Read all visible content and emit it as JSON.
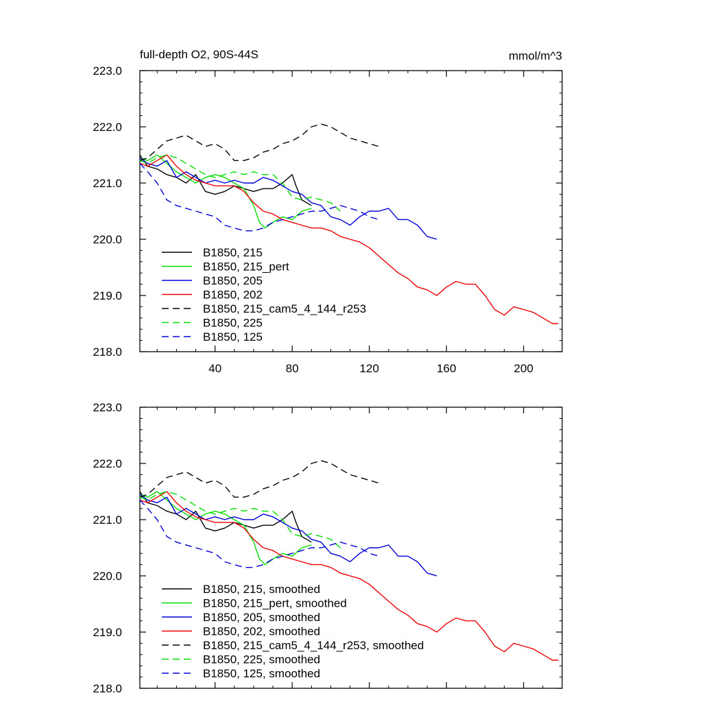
{
  "chart_data": [
    {
      "type": "line",
      "title": "full-depth O2, 90S-44S",
      "units": "mmol/m^3",
      "xlabel": "",
      "ylabel": "",
      "xlim": [
        1,
        220
      ],
      "ylim": [
        218.0,
        223.0
      ],
      "xticks": [
        40,
        80,
        120,
        160,
        200
      ],
      "yticks": [
        218.0,
        219.0,
        220.0,
        221.0,
        222.0,
        223.0
      ],
      "x_tick_labels_shown": true,
      "grid": false,
      "legend_position": "bottom-left",
      "series": [
        {
          "name": "B1850, 215",
          "color": "#000000",
          "dash": "solid",
          "x": [
            1,
            5,
            10,
            15,
            20,
            25,
            30,
            35,
            40,
            45,
            50,
            55,
            60,
            65,
            70,
            75,
            80,
            82,
            85,
            90
          ],
          "y": [
            221.5,
            221.3,
            221.25,
            221.15,
            221.1,
            221.0,
            221.15,
            220.85,
            220.8,
            220.85,
            220.95,
            220.9,
            220.85,
            220.9,
            220.9,
            221.0,
            221.15,
            220.95,
            220.7,
            220.6
          ]
        },
        {
          "name": "B1850, 215_pert",
          "color": "#00dd00",
          "dash": "solid",
          "x": [
            1,
            5,
            10,
            15,
            20,
            25,
            30,
            35,
            40,
            45,
            50,
            55,
            60,
            63,
            66,
            70,
            75,
            80,
            85,
            90
          ],
          "y": [
            221.45,
            221.4,
            221.5,
            221.35,
            221.2,
            221.1,
            221.0,
            221.1,
            221.15,
            221.1,
            221.0,
            220.9,
            220.6,
            220.3,
            220.2,
            220.3,
            220.4,
            220.35,
            220.5,
            220.55
          ]
        },
        {
          "name": "B1850, 205",
          "color": "#0000dd",
          "dash": "solid",
          "x": [
            1,
            5,
            10,
            15,
            20,
            25,
            30,
            35,
            40,
            45,
            50,
            55,
            60,
            65,
            70,
            75,
            80,
            85,
            90,
            95,
            100,
            105,
            110,
            115,
            120,
            125,
            130,
            135,
            140,
            145,
            150,
            155
          ],
          "y": [
            221.45,
            221.35,
            221.3,
            221.4,
            221.1,
            221.2,
            221.1,
            221.0,
            221.05,
            221.0,
            221.05,
            221.0,
            221.0,
            221.1,
            221.05,
            220.95,
            220.85,
            220.8,
            220.65,
            220.6,
            220.4,
            220.35,
            220.25,
            220.4,
            220.5,
            220.5,
            220.55,
            220.35,
            220.35,
            220.25,
            220.05,
            220.0
          ]
        },
        {
          "name": "B1850, 202",
          "color": "#ee0000",
          "dash": "solid",
          "x": [
            1,
            5,
            10,
            15,
            20,
            25,
            30,
            35,
            40,
            45,
            50,
            55,
            60,
            65,
            70,
            75,
            80,
            85,
            90,
            95,
            100,
            105,
            110,
            115,
            120,
            125,
            130,
            135,
            140,
            145,
            150,
            155,
            160,
            165,
            170,
            175,
            180,
            185,
            190,
            195,
            200,
            205,
            210,
            215,
            218
          ],
          "y": [
            221.35,
            221.3,
            221.4,
            221.5,
            221.3,
            221.15,
            221.05,
            221.0,
            220.95,
            220.95,
            220.95,
            220.85,
            220.65,
            220.5,
            220.45,
            220.35,
            220.3,
            220.25,
            220.2,
            220.2,
            220.15,
            220.05,
            220.0,
            219.95,
            219.85,
            219.7,
            219.55,
            219.4,
            219.3,
            219.15,
            219.1,
            219.0,
            219.15,
            219.25,
            219.2,
            219.2,
            219.0,
            218.75,
            218.65,
            218.8,
            218.75,
            218.7,
            218.6,
            218.5,
            218.5
          ]
        },
        {
          "name": "B1850, 215_cam5_4_144_r253",
          "color": "#000000",
          "dash": "dashed",
          "x": [
            1,
            5,
            10,
            15,
            20,
            25,
            30,
            35,
            40,
            45,
            50,
            55,
            60,
            65,
            70,
            75,
            80,
            85,
            90,
            95,
            100,
            105,
            110,
            115,
            120,
            125
          ],
          "y": [
            221.4,
            221.45,
            221.6,
            221.75,
            221.8,
            221.85,
            221.75,
            221.65,
            221.7,
            221.6,
            221.4,
            221.4,
            221.45,
            221.55,
            221.6,
            221.7,
            221.75,
            221.85,
            222.0,
            222.05,
            222.0,
            221.9,
            221.8,
            221.75,
            221.7,
            221.65
          ]
        },
        {
          "name": "B1850, 225",
          "color": "#00dd00",
          "dash": "dashed",
          "x": [
            1,
            5,
            10,
            15,
            20,
            25,
            30,
            35,
            40,
            45,
            50,
            55,
            60,
            65,
            70,
            75,
            80,
            85,
            90,
            95,
            100,
            105
          ],
          "y": [
            221.4,
            221.35,
            221.45,
            221.5,
            221.45,
            221.35,
            221.25,
            221.15,
            221.1,
            221.15,
            221.2,
            221.15,
            221.2,
            221.15,
            221.15,
            221.0,
            220.75,
            220.7,
            220.75,
            220.7,
            220.65,
            220.5
          ]
        },
        {
          "name": "B1850, 125",
          "color": "#0000dd",
          "dash": "dashed",
          "x": [
            1,
            5,
            10,
            15,
            20,
            25,
            30,
            35,
            40,
            45,
            50,
            55,
            60,
            65,
            70,
            75,
            80,
            85,
            90,
            95,
            100,
            105,
            110,
            115,
            120,
            125
          ],
          "y": [
            221.35,
            221.2,
            221.0,
            220.7,
            220.6,
            220.55,
            220.5,
            220.45,
            220.4,
            220.25,
            220.2,
            220.15,
            220.15,
            220.2,
            220.3,
            220.35,
            220.4,
            220.45,
            220.5,
            220.5,
            220.55,
            220.6,
            220.55,
            220.5,
            220.4,
            220.35
          ]
        }
      ]
    },
    {
      "type": "line",
      "title": "",
      "units": "",
      "xlabel": "",
      "ylabel": "",
      "xlim": [
        1,
        220
      ],
      "ylim": [
        218.0,
        223.0
      ],
      "xticks": [
        40,
        80,
        120,
        160,
        200
      ],
      "yticks": [
        218.0,
        219.0,
        220.0,
        221.0,
        222.0,
        223.0
      ],
      "x_tick_labels_shown": false,
      "grid": false,
      "legend_position": "bottom-left",
      "series": [
        {
          "name": "B1850, 215, smoothed",
          "color": "#000000",
          "dash": "solid",
          "x": [
            1,
            5,
            10,
            15,
            20,
            25,
            30,
            35,
            40,
            45,
            50,
            55,
            60,
            65,
            70,
            75,
            80,
            82,
            85,
            90
          ],
          "y": [
            221.5,
            221.3,
            221.25,
            221.15,
            221.1,
            221.0,
            221.15,
            220.85,
            220.8,
            220.85,
            220.95,
            220.9,
            220.85,
            220.9,
            220.9,
            221.0,
            221.15,
            220.95,
            220.7,
            220.6
          ]
        },
        {
          "name": "B1850, 215_pert, smoothed",
          "color": "#00dd00",
          "dash": "solid",
          "x": [
            1,
            5,
            10,
            15,
            20,
            25,
            30,
            35,
            40,
            45,
            50,
            55,
            60,
            63,
            66,
            70,
            75,
            80,
            85,
            90
          ],
          "y": [
            221.45,
            221.4,
            221.5,
            221.35,
            221.2,
            221.1,
            221.0,
            221.1,
            221.15,
            221.1,
            221.0,
            220.9,
            220.6,
            220.3,
            220.2,
            220.3,
            220.4,
            220.35,
            220.5,
            220.55
          ]
        },
        {
          "name": "B1850, 205, smoothed",
          "color": "#0000dd",
          "dash": "solid",
          "x": [
            1,
            5,
            10,
            15,
            20,
            25,
            30,
            35,
            40,
            45,
            50,
            55,
            60,
            65,
            70,
            75,
            80,
            85,
            90,
            95,
            100,
            105,
            110,
            115,
            120,
            125,
            130,
            135,
            140,
            145,
            150,
            155
          ],
          "y": [
            221.45,
            221.35,
            221.3,
            221.4,
            221.1,
            221.2,
            221.1,
            221.0,
            221.05,
            221.0,
            221.05,
            221.0,
            221.0,
            221.1,
            221.05,
            220.95,
            220.85,
            220.8,
            220.65,
            220.6,
            220.4,
            220.35,
            220.25,
            220.4,
            220.5,
            220.5,
            220.55,
            220.35,
            220.35,
            220.25,
            220.05,
            220.0
          ]
        },
        {
          "name": "B1850, 202, smoothed",
          "color": "#ee0000",
          "dash": "solid",
          "x": [
            1,
            5,
            10,
            15,
            20,
            25,
            30,
            35,
            40,
            45,
            50,
            55,
            60,
            65,
            70,
            75,
            80,
            85,
            90,
            95,
            100,
            105,
            110,
            115,
            120,
            125,
            130,
            135,
            140,
            145,
            150,
            155,
            160,
            165,
            170,
            175,
            180,
            185,
            190,
            195,
            200,
            205,
            210,
            215,
            218
          ],
          "y": [
            221.35,
            221.3,
            221.4,
            221.5,
            221.3,
            221.15,
            221.05,
            221.0,
            220.95,
            220.95,
            220.95,
            220.85,
            220.65,
            220.5,
            220.45,
            220.35,
            220.3,
            220.25,
            220.2,
            220.2,
            220.15,
            220.05,
            220.0,
            219.95,
            219.85,
            219.7,
            219.55,
            219.4,
            219.3,
            219.15,
            219.1,
            219.0,
            219.15,
            219.25,
            219.2,
            219.2,
            219.0,
            218.75,
            218.65,
            218.8,
            218.75,
            218.7,
            218.6,
            218.5,
            218.5
          ]
        },
        {
          "name": "B1850, 215_cam5_4_144_r253, smoothed",
          "color": "#000000",
          "dash": "dashed",
          "x": [
            1,
            5,
            10,
            15,
            20,
            25,
            30,
            35,
            40,
            45,
            50,
            55,
            60,
            65,
            70,
            75,
            80,
            85,
            90,
            95,
            100,
            105,
            110,
            115,
            120,
            125
          ],
          "y": [
            221.4,
            221.45,
            221.6,
            221.75,
            221.8,
            221.85,
            221.75,
            221.65,
            221.7,
            221.6,
            221.4,
            221.4,
            221.45,
            221.55,
            221.6,
            221.7,
            221.75,
            221.85,
            222.0,
            222.05,
            222.0,
            221.9,
            221.8,
            221.75,
            221.7,
            221.65
          ]
        },
        {
          "name": "B1850, 225, smoothed",
          "color": "#00dd00",
          "dash": "dashed",
          "x": [
            1,
            5,
            10,
            15,
            20,
            25,
            30,
            35,
            40,
            45,
            50,
            55,
            60,
            65,
            70,
            75,
            80,
            85,
            90,
            95,
            100,
            105
          ],
          "y": [
            221.4,
            221.35,
            221.45,
            221.5,
            221.45,
            221.35,
            221.25,
            221.15,
            221.1,
            221.15,
            221.2,
            221.15,
            221.2,
            221.15,
            221.15,
            221.0,
            220.75,
            220.7,
            220.75,
            220.7,
            220.65,
            220.5
          ]
        },
        {
          "name": "B1850, 125, smoothed",
          "color": "#0000dd",
          "dash": "dashed",
          "x": [
            1,
            5,
            10,
            15,
            20,
            25,
            30,
            35,
            40,
            45,
            50,
            55,
            60,
            65,
            70,
            75,
            80,
            85,
            90,
            95,
            100,
            105,
            110,
            115,
            120,
            125
          ],
          "y": [
            221.35,
            221.2,
            221.0,
            220.7,
            220.6,
            220.55,
            220.5,
            220.45,
            220.4,
            220.25,
            220.2,
            220.15,
            220.15,
            220.2,
            220.3,
            220.35,
            220.4,
            220.45,
            220.5,
            220.5,
            220.55,
            220.6,
            220.55,
            220.5,
            220.4,
            220.35
          ]
        }
      ]
    }
  ]
}
